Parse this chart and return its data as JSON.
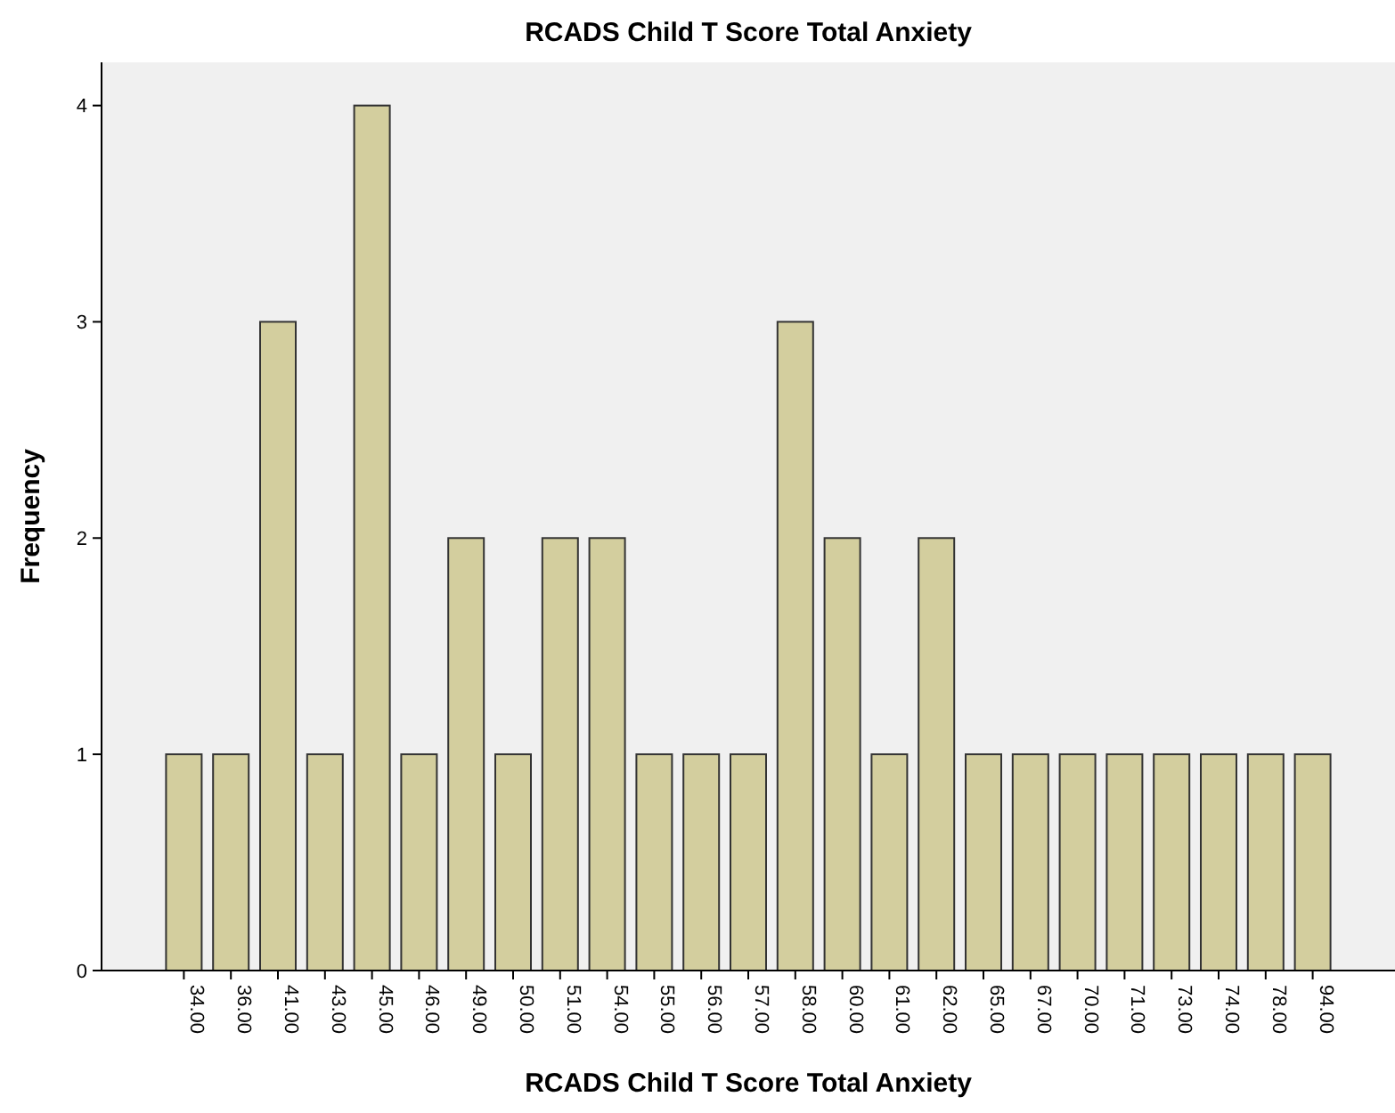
{
  "chart_data": {
    "type": "bar",
    "title": "RCADS Child T Score Total Anxiety",
    "xlabel": "RCADS Child T Score Total Anxiety",
    "ylabel": "Frequency",
    "categories": [
      "34.00",
      "36.00",
      "41.00",
      "43.00",
      "45.00",
      "46.00",
      "49.00",
      "50.00",
      "51.00",
      "54.00",
      "55.00",
      "56.00",
      "57.00",
      "58.00",
      "60.00",
      "61.00",
      "62.00",
      "65.00",
      "67.00",
      "70.00",
      "71.00",
      "73.00",
      "74.00",
      "78.00",
      "94.00"
    ],
    "values": [
      1,
      1,
      3,
      1,
      4,
      1,
      2,
      1,
      2,
      2,
      1,
      1,
      1,
      3,
      2,
      1,
      2,
      1,
      1,
      1,
      1,
      1,
      1,
      1,
      1
    ],
    "color": "#d3ce9e",
    "ylim": [
      0,
      4.2
    ],
    "yticks": [
      0,
      1,
      2,
      3,
      4
    ],
    "grid": false
  }
}
